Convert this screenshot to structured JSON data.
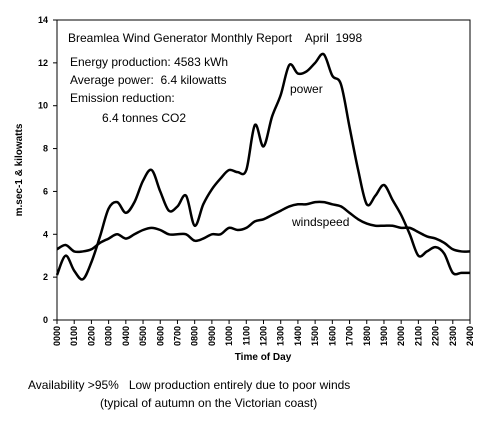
{
  "chart_data": {
    "type": "line",
    "title": "Breamlea Wind Generator Monthly Report    April  1998",
    "annotations": [
      "Energy production: 4583 kWh",
      "Average power:  6.4 kilowatts",
      "Emission reduction:",
      "6.4 tonnes CO2"
    ],
    "footnotes": [
      "Availability >95%   Low production entirely due to poor winds",
      "(typical of autumn on the Victorian coast)"
    ],
    "x_label": "Time of Day",
    "y_label": "m.sec-1 & kilowatts",
    "x": [
      0,
      0.5,
      1,
      1.5,
      2,
      2.5,
      3,
      3.5,
      4,
      4.5,
      5,
      5.5,
      6,
      6.5,
      7,
      7.5,
      8,
      8.5,
      9,
      9.5,
      10,
      10.5,
      11,
      11.5,
      12,
      12.5,
      13,
      13.5,
      14,
      14.5,
      15,
      15.5,
      16,
      16.5,
      17,
      17.5,
      18,
      18.5,
      19,
      19.5,
      20,
      20.5,
      21,
      21.5,
      22,
      22.5,
      23,
      23.5,
      24
    ],
    "series": [
      {
        "name": "power",
        "color": "#000000",
        "values": [
          2.1,
          3.0,
          2.3,
          1.9,
          2.7,
          3.9,
          5.2,
          5.5,
          5.0,
          5.5,
          6.5,
          7.0,
          6.0,
          5.1,
          5.3,
          5.8,
          4.4,
          5.4,
          6.1,
          6.6,
          7.0,
          6.9,
          7.0,
          9.1,
          8.1,
          9.5,
          10.5,
          11.9,
          11.5,
          11.6,
          12.0,
          12.4,
          11.4,
          11.0,
          9.0,
          7.0,
          5.4,
          5.8,
          6.3,
          5.6,
          4.9,
          4.0,
          3.0,
          3.2,
          3.4,
          3.1,
          2.2,
          2.2,
          2.2
        ]
      },
      {
        "name": "windspeed",
        "color": "#000000",
        "values": [
          3.3,
          3.5,
          3.2,
          3.2,
          3.3,
          3.6,
          3.8,
          4.0,
          3.8,
          4.0,
          4.2,
          4.3,
          4.2,
          4.0,
          4.0,
          4.0,
          3.7,
          3.8,
          4.0,
          4.0,
          4.3,
          4.2,
          4.3,
          4.6,
          4.7,
          4.9,
          5.1,
          5.3,
          5.4,
          5.4,
          5.5,
          5.5,
          5.4,
          5.3,
          5.0,
          4.7,
          4.5,
          4.4,
          4.4,
          4.4,
          4.3,
          4.3,
          4.1,
          3.9,
          3.8,
          3.6,
          3.3,
          3.2,
          3.2
        ]
      }
    ],
    "xlim": [
      0,
      24
    ],
    "xticks": [
      {
        "value": 0,
        "label": "0000"
      },
      {
        "value": 1,
        "label": "0100"
      },
      {
        "value": 2,
        "label": "0200"
      },
      {
        "value": 3,
        "label": "0300"
      },
      {
        "value": 4,
        "label": "0400"
      },
      {
        "value": 5,
        "label": "0500"
      },
      {
        "value": 6,
        "label": "0600"
      },
      {
        "value": 7,
        "label": "0700"
      },
      {
        "value": 8,
        "label": "0800"
      },
      {
        "value": 9,
        "label": "0900"
      },
      {
        "value": 10,
        "label": "1000"
      },
      {
        "value": 11,
        "label": "1100"
      },
      {
        "value": 12,
        "label": "1200"
      },
      {
        "value": 13,
        "label": "1300"
      },
      {
        "value": 14,
        "label": "1400"
      },
      {
        "value": 15,
        "label": "1500"
      },
      {
        "value": 16,
        "label": "1600"
      },
      {
        "value": 17,
        "label": "1700"
      },
      {
        "value": 18,
        "label": "1800"
      },
      {
        "value": 19,
        "label": "1900"
      },
      {
        "value": 20,
        "label": "2000"
      },
      {
        "value": 21,
        "label": "2100"
      },
      {
        "value": 22,
        "label": "2200"
      },
      {
        "value": 23,
        "label": "2300"
      },
      {
        "value": 24,
        "label": "2400"
      }
    ],
    "ylim": [
      0,
      14
    ],
    "yticks": [
      0,
      2,
      4,
      6,
      8,
      10,
      12,
      14
    ],
    "grid": false
  }
}
